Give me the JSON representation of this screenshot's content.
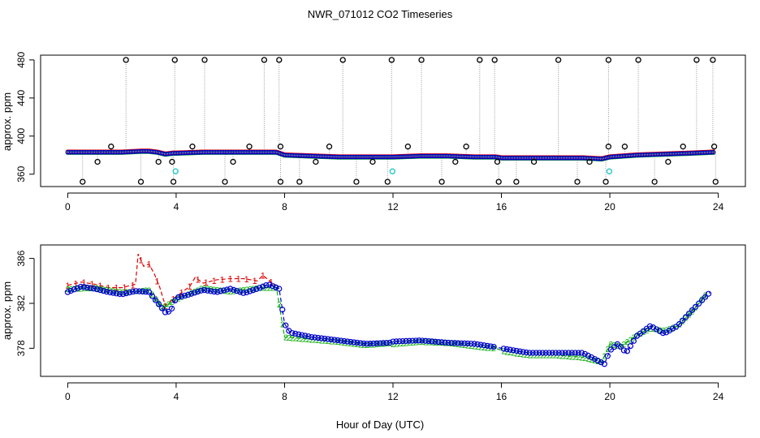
{
  "title": "NWR_071012  CO2 Timeseries",
  "xlabel": "Hour of Day (UTC)",
  "chart_data": [
    {
      "type": "scatter",
      "name": "top-panel",
      "ylabel": "approx. ppm",
      "xlim": [
        -1,
        25
      ],
      "ylim": [
        347,
        485
      ],
      "xticks": [
        0,
        4,
        8,
        12,
        16,
        20,
        24
      ],
      "yticks": [
        360,
        400,
        440,
        480
      ],
      "baseline": {
        "x": [
          0,
          1,
          2,
          2.7,
          3,
          3.3,
          3.6,
          3.9,
          4,
          5,
          6,
          7,
          7.7,
          8,
          9,
          10,
          11,
          12,
          13,
          14,
          15,
          15.8,
          16,
          17,
          18,
          19,
          19.7,
          20,
          21,
          22,
          23,
          23.8
        ],
        "y": [
          383,
          383,
          383,
          384,
          384,
          383,
          381,
          382,
          382,
          383,
          383,
          383,
          383,
          380,
          379,
          378,
          378,
          378,
          379,
          379,
          378,
          378,
          377,
          377,
          377,
          377,
          376,
          378,
          380,
          381,
          382,
          383
        ]
      },
      "outliers_high": {
        "x": [
          2.15,
          3.95,
          5.05,
          7.25,
          7.8,
          10.15,
          11.95,
          13.05,
          15.2,
          15.75,
          18.1,
          19.95,
          21.05,
          23.2,
          23.8
        ],
        "y": [
          480,
          480,
          480,
          480,
          480,
          480,
          480,
          480,
          480,
          480,
          480,
          480,
          480,
          480,
          480
        ]
      },
      "outliers_mid": {
        "x": [
          1.6,
          4.6,
          6.7,
          7.85,
          9.65,
          12.55,
          14.7,
          19.95,
          20.55,
          22.7,
          23.85
        ],
        "y": [
          389,
          389,
          389,
          389,
          389,
          389,
          389,
          389,
          389,
          389,
          389
        ]
      },
      "outliers_low": {
        "x": [
          0.55,
          1.1,
          2.7,
          3.35,
          3.85,
          3.9,
          5.8,
          6.1,
          7.85,
          8.55,
          9.15,
          10.65,
          11.25,
          11.8,
          13.8,
          14.3,
          15.85,
          15.9,
          16.55,
          17.2,
          18.8,
          19.25,
          19.85,
          21.65,
          22.15,
          23.9
        ],
        "y": [
          352,
          373,
          352,
          373,
          373,
          352,
          352,
          373,
          352,
          352,
          373,
          352,
          373,
          352,
          352,
          373,
          373,
          352,
          352,
          373,
          352,
          373,
          352,
          352,
          373,
          352
        ]
      },
      "cyan_points": {
        "x": [
          3.98,
          11.98,
          19.98
        ],
        "y": [
          363,
          363,
          363
        ]
      }
    },
    {
      "type": "line",
      "name": "bottom-panel",
      "ylabel": "approx. ppm",
      "xlim": [
        -1,
        25
      ],
      "ylim": [
        375.5,
        387.2
      ],
      "xticks": [
        0,
        4,
        8,
        12,
        16,
        20,
        24
      ],
      "yticks": [
        378,
        382,
        386
      ],
      "series": [
        {
          "name": "1",
          "color": "#dd0000",
          "x": [
            0,
            0.5,
            1,
            1.5,
            2,
            2.5,
            2.6,
            2.8,
            3.0,
            3.2,
            3.4,
            3.6,
            4,
            4.5,
            4.7,
            5,
            5.5,
            6,
            6.5,
            7,
            7.2,
            7.5,
            7.7
          ],
          "y": [
            383.6,
            383.9,
            383.7,
            383.4,
            383.4,
            383.7,
            386.4,
            385.3,
            385.5,
            384.6,
            383.4,
            381.8,
            382.6,
            383.5,
            384.3,
            383.8,
            384.1,
            384.2,
            384.2,
            384.0,
            384.5,
            383.9,
            383.6
          ]
        },
        {
          "name": "2",
          "color": "#00aa00",
          "x": [
            0,
            1,
            2,
            3,
            3.5,
            4,
            5,
            6,
            7,
            7.7,
            8,
            9,
            10,
            11,
            11.9,
            12,
            13,
            14,
            15,
            15.8,
            16,
            17,
            18,
            19,
            19.7,
            20,
            20.4,
            21,
            21.5,
            22,
            22.5,
            23,
            23.6
          ],
          "y": [
            383.3,
            383.4,
            383.0,
            383.2,
            381.6,
            382.4,
            383.4,
            383.1,
            383.4,
            383.4,
            379.0,
            378.8,
            378.6,
            378.3,
            378.5,
            378.4,
            378.6,
            378.5,
            378.2,
            378.0,
            377.8,
            377.4,
            377.4,
            377.2,
            376.8,
            378.4,
            378.2,
            379.2,
            379.8,
            379.6,
            380.0,
            381.2,
            383.0
          ]
        },
        {
          "name": "3",
          "color": "#0000cc",
          "x": [
            0,
            0.5,
            1,
            1.5,
            2,
            2.5,
            3,
            3.3,
            3.6,
            3.8,
            4,
            4.5,
            5,
            5.5,
            6,
            6.5,
            7,
            7.4,
            7.8,
            8,
            8.2,
            9,
            10,
            11,
            11.9,
            12,
            13,
            14,
            15,
            15.8,
            16,
            17,
            18,
            19,
            19.8,
            20,
            20.3,
            20.6,
            21,
            21.5,
            22,
            22.5,
            23,
            23.7
          ],
          "y": [
            383.0,
            383.5,
            383.3,
            383.0,
            382.8,
            383.1,
            383.0,
            382.1,
            381.2,
            381.3,
            382.5,
            382.8,
            383.2,
            383.0,
            383.3,
            382.9,
            383.3,
            383.7,
            383.3,
            380.2,
            379.4,
            379.0,
            378.7,
            378.4,
            378.5,
            378.6,
            378.7,
            378.5,
            378.4,
            378.1,
            378.0,
            377.6,
            377.6,
            377.6,
            376.6,
            377.8,
            378.4,
            377.6,
            379.1,
            380.0,
            379.3,
            380.0,
            381.3,
            383.0
          ]
        }
      ]
    }
  ]
}
